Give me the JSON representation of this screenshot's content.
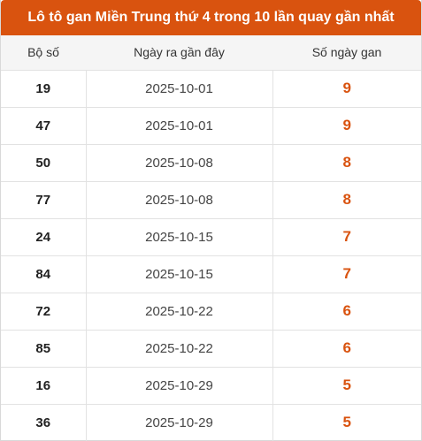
{
  "title": "Lô tô gan Miền Trung thứ 4 trong 10 lần quay gần nhất",
  "columns": [
    "Bộ số",
    "Ngày ra gần đây",
    "Số ngày gan"
  ],
  "rows": [
    {
      "number": "19",
      "date": "2025-10-01",
      "days": "9"
    },
    {
      "number": "47",
      "date": "2025-10-01",
      "days": "9"
    },
    {
      "number": "50",
      "date": "2025-10-08",
      "days": "8"
    },
    {
      "number": "77",
      "date": "2025-10-08",
      "days": "8"
    },
    {
      "number": "24",
      "date": "2025-10-15",
      "days": "7"
    },
    {
      "number": "84",
      "date": "2025-10-15",
      "days": "7"
    },
    {
      "number": "72",
      "date": "2025-10-22",
      "days": "6"
    },
    {
      "number": "85",
      "date": "2025-10-22",
      "days": "6"
    },
    {
      "number": "16",
      "date": "2025-10-29",
      "days": "5"
    },
    {
      "number": "36",
      "date": "2025-10-29",
      "days": "5"
    }
  ],
  "colors": {
    "accent": "#d9530f",
    "header_bg": "#f5f5f5"
  }
}
